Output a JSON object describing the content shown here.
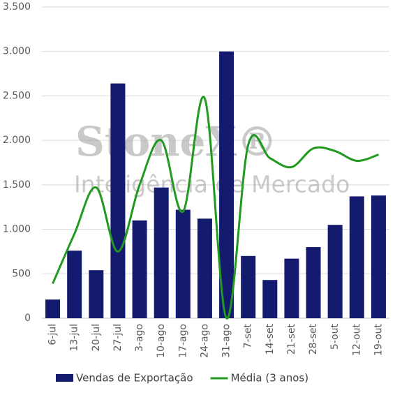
{
  "chart_data": {
    "type": "bar_line",
    "categories": [
      "6-jul",
      "13-jul",
      "20-jul",
      "27-jul",
      "3-ago",
      "10-ago",
      "17-ago",
      "24-ago",
      "31-ago",
      "7-set",
      "14-set",
      "21-set",
      "28-set",
      "5-out",
      "12-out",
      "19-out"
    ],
    "series": [
      {
        "name": "Vendas de Exportação",
        "color": "#141a6e",
        "type": "bar",
        "values": [
          210,
          760,
          540,
          2640,
          1100,
          1470,
          1220,
          1120,
          3000,
          700,
          430,
          670,
          800,
          1050,
          1370,
          1380
        ]
      },
      {
        "name": "Média (3 anos)",
        "color": "#1f9a1f",
        "type": "line",
        "values": [
          390,
          950,
          1470,
          750,
          1500,
          2000,
          1200,
          2470,
          0,
          1950,
          1800,
          1700,
          1910,
          1880,
          1770,
          1840
        ]
      }
    ],
    "ylim": [
      0,
      3500
    ],
    "yticks": [
      0,
      500,
      {
        "value": 1000,
        "label": "1.000"
      },
      {
        "value": 1500,
        "label": "1.500"
      },
      {
        "value": 2000,
        "label": "2.000"
      },
      {
        "value": 2500,
        "label": "2.500"
      },
      {
        "value": 3000,
        "label": "3.000"
      },
      {
        "value": 3500,
        "label": "3.500"
      }
    ],
    "grid": true,
    "legend": "bottom",
    "watermark": {
      "brand": "StoneX®",
      "tagline": "Inteligência de Mercado"
    }
  }
}
